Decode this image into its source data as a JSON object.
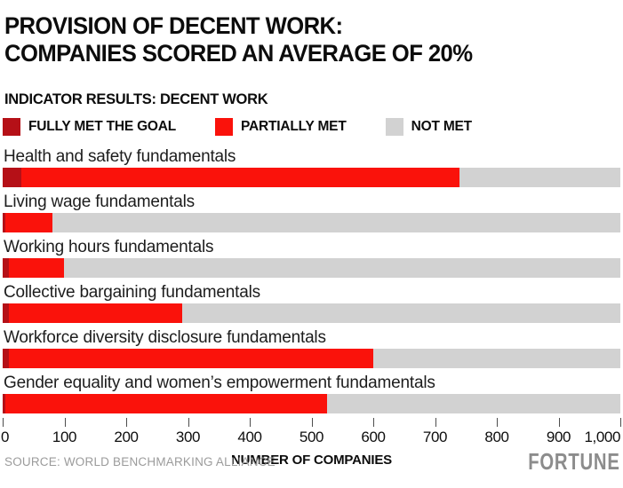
{
  "header": {
    "title_line1": "PROVISION OF DECENT WORK:",
    "title_line2": "COMPANIES SCORED AN AVERAGE OF 20%",
    "subtitle": "INDICATOR RESULTS: DECENT WORK"
  },
  "legend": [
    {
      "label": "FULLY MET THE GOAL",
      "color": "#b51017"
    },
    {
      "label": "PARTIALLY MET",
      "color": "#fa120b"
    },
    {
      "label": "NOT MET",
      "color": "#d2d2d2"
    }
  ],
  "chart_data": {
    "type": "bar",
    "orientation": "horizontal",
    "stacked": true,
    "title": "PROVISION OF DECENT WORK: COMPANIES SCORED AN AVERAGE OF 20%",
    "subtitle": "INDICATOR RESULTS: DECENT WORK",
    "categories": [
      "Health and safety fundamentals",
      "Living wage fundamentals",
      "Working hours fundamentals",
      "Collective bargaining fundamentals",
      "Workforce diversity disclosure fundamentals",
      "Gender equality and women’s empowerment fundamentals"
    ],
    "series": [
      {
        "name": "Fully met the goal",
        "color": "#b51017",
        "values": [
          30,
          5,
          10,
          10,
          10,
          5
        ]
      },
      {
        "name": "Partially met",
        "color": "#fa120b",
        "values": [
          710,
          75,
          90,
          280,
          590,
          520
        ]
      },
      {
        "name": "Not met",
        "color": "#d2d2d2",
        "values": [
          260,
          920,
          900,
          710,
          400,
          475
        ]
      }
    ],
    "xlabel": "NUMBER OF COMPANIES",
    "xlim": [
      0,
      1000
    ],
    "xticks": [
      "0",
      "100",
      "200",
      "300",
      "400",
      "500",
      "600",
      "700",
      "800",
      "900",
      "1,000"
    ],
    "grid": false,
    "legend_position": "top"
  },
  "footer": {
    "source": "SOURCE: WORLD BENCHMARKING ALLIANCE",
    "brand": "FORTUNE"
  }
}
